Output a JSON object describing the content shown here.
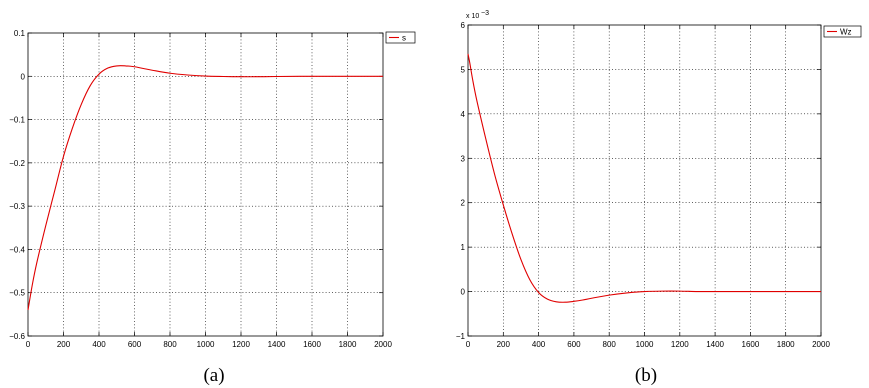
{
  "chart_data": [
    {
      "type": "line",
      "caption": "(a)",
      "xlim": [
        0,
        2000
      ],
      "ylim": [
        -0.6,
        0.1
      ],
      "xticks": [
        0,
        200,
        400,
        600,
        800,
        1000,
        1200,
        1400,
        1600,
        1800,
        2000
      ],
      "xtick_labels": [
        "0",
        "200",
        "400",
        "600",
        "800",
        "1000",
        "1200",
        "1400",
        "1600",
        "1800",
        "2000"
      ],
      "yticks": [
        0.1,
        0,
        -0.1,
        -0.2,
        -0.3,
        -0.4,
        -0.5,
        -0.6
      ],
      "ytick_labels": [
        "0.1",
        "0",
        "−0.1",
        "−0.2",
        "−0.3",
        "−0.4",
        "−0.5",
        "−0.6"
      ],
      "grid": true,
      "legend_position": "top-right",
      "series": [
        {
          "name": "s",
          "color": "#e00000",
          "x": [
            0,
            25,
            50,
            100,
            150,
            200,
            250,
            300,
            350,
            400,
            450,
            500,
            550,
            600,
            650,
            700,
            800,
            900,
            1000,
            1100,
            1200,
            1300,
            1400,
            1600,
            1800,
            2000
          ],
          "y": [
            -0.54,
            -0.48,
            -0.43,
            -0.345,
            -0.265,
            -0.185,
            -0.12,
            -0.065,
            -0.022,
            0.005,
            0.019,
            0.024,
            0.024,
            0.022,
            0.018,
            0.014,
            0.007,
            0.003,
            0.0005,
            -0.0005,
            -0.001,
            -0.001,
            -0.0005,
            0.0,
            0.0,
            0.0
          ]
        }
      ]
    },
    {
      "type": "line",
      "caption": "(b)",
      "xlim": [
        0,
        2000
      ],
      "ylim": [
        -1,
        6
      ],
      "exponent_label": "x 10",
      "exponent_power": "−3",
      "xticks": [
        0,
        200,
        400,
        600,
        800,
        1000,
        1200,
        1400,
        1600,
        1800,
        2000
      ],
      "xtick_labels": [
        "0",
        "200",
        "400",
        "600",
        "800",
        "1000",
        "1200",
        "1400",
        "1600",
        "1800",
        "2000"
      ],
      "yticks": [
        6,
        5,
        4,
        3,
        2,
        1,
        0,
        -1
      ],
      "ytick_labels": [
        "6",
        "5",
        "4",
        "3",
        "2",
        "1",
        "0",
        "−1"
      ],
      "grid": true,
      "legend_position": "top-right",
      "series": [
        {
          "name": "Wz",
          "color": "#e00000",
          "x": [
            0,
            10,
            25,
            50,
            100,
            150,
            200,
            250,
            300,
            350,
            400,
            450,
            500,
            550,
            600,
            650,
            700,
            800,
            900,
            1000,
            1100,
            1200,
            1300,
            1400,
            1600,
            1800,
            2000
          ],
          "y": [
            5.35,
            5.15,
            4.8,
            4.3,
            3.45,
            2.65,
            1.95,
            1.3,
            0.72,
            0.27,
            -0.02,
            -0.17,
            -0.23,
            -0.24,
            -0.22,
            -0.19,
            -0.15,
            -0.08,
            -0.03,
            0.0,
            0.01,
            0.01,
            0.0,
            0.0,
            0.0,
            0.0,
            0.0
          ]
        }
      ]
    }
  ]
}
